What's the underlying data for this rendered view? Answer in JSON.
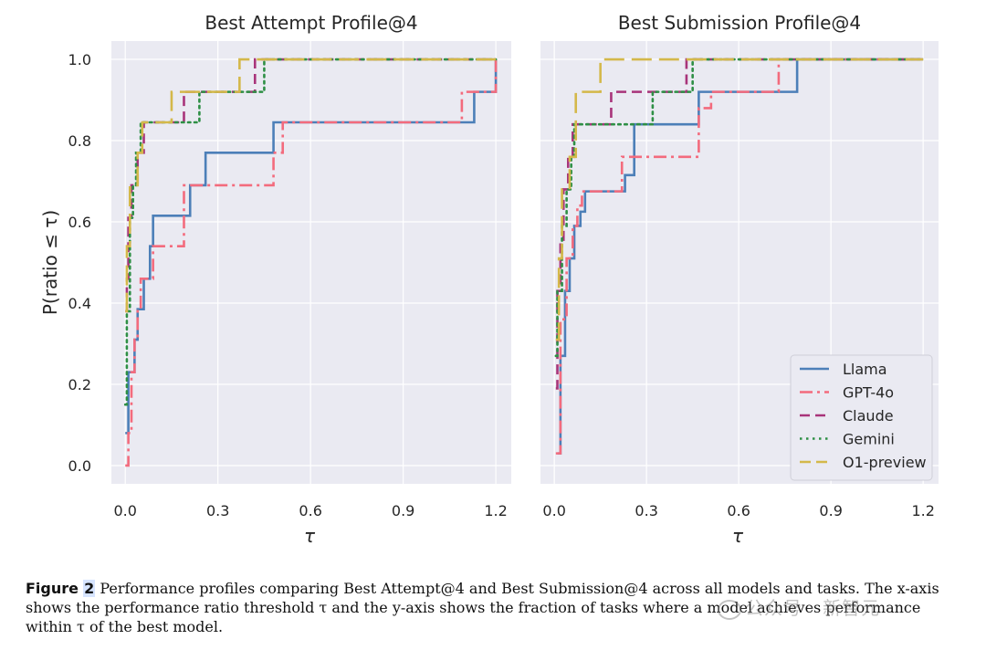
{
  "colors": {
    "plot_bg": "#eaeaf2",
    "grid": "#ffffff",
    "llama": "#4c7fb8",
    "gpt4o": "#f36b7d",
    "claude": "#a8347a",
    "gemini": "#2e8f45",
    "o1": "#d4b84a"
  },
  "chart_data": [
    {
      "type": "line",
      "step": "post",
      "title": "Best Attempt Profile@4",
      "xlabel": "τ",
      "ylabel": "P(ratio ≤ τ)",
      "xlim": [
        -0.045,
        1.25
      ],
      "ylim": [
        -0.045,
        1.045
      ],
      "xticks": [
        "0.0",
        "0.3",
        "0.6",
        "0.9",
        "1.2"
      ],
      "yticks": [
        "0.0",
        "0.2",
        "0.4",
        "0.6",
        "0.8",
        "1.0"
      ],
      "grid": true,
      "series": [
        {
          "name": "Llama",
          "style": "solid",
          "x": [
            0.0,
            0.01,
            0.03,
            0.04,
            0.06,
            0.08,
            0.09,
            0.21,
            0.26,
            0.48,
            1.13,
            1.2
          ],
          "y": [
            0.08,
            0.23,
            0.31,
            0.385,
            0.46,
            0.54,
            0.615,
            0.69,
            0.77,
            0.845,
            0.92,
            1.0
          ]
        },
        {
          "name": "GPT-4o",
          "style": "dashdot",
          "x": [
            0.0,
            0.01,
            0.02,
            0.03,
            0.04,
            0.05,
            0.09,
            0.19,
            0.48,
            0.51,
            1.09,
            1.2
          ],
          "y": [
            0.0,
            0.08,
            0.23,
            0.31,
            0.385,
            0.46,
            0.54,
            0.69,
            0.77,
            0.845,
            0.92,
            1.0
          ]
        },
        {
          "name": "Claude",
          "style": "dashed",
          "x": [
            0.0,
            0.005,
            0.01,
            0.02,
            0.04,
            0.06,
            0.19,
            0.42,
            1.2
          ],
          "y": [
            0.38,
            0.46,
            0.61,
            0.69,
            0.77,
            0.845,
            0.92,
            1.0,
            1.0
          ]
        },
        {
          "name": "Gemini",
          "style": "dotted",
          "x": [
            0.0,
            0.005,
            0.015,
            0.025,
            0.035,
            0.05,
            0.06,
            0.24,
            0.45,
            1.2
          ],
          "y": [
            0.15,
            0.38,
            0.61,
            0.69,
            0.77,
            0.845,
            0.845,
            0.92,
            1.0,
            1.0
          ]
        },
        {
          "name": "O1-preview",
          "style": "longdash",
          "x": [
            0.0,
            0.005,
            0.015,
            0.04,
            0.055,
            0.15,
            0.37,
            1.2
          ],
          "y": [
            0.38,
            0.54,
            0.69,
            0.77,
            0.845,
            0.92,
            1.0,
            1.0
          ]
        }
      ]
    },
    {
      "type": "line",
      "step": "post",
      "title": "Best Submission Profile@4",
      "xlabel": "τ",
      "ylabel": "",
      "xlim": [
        -0.045,
        1.25
      ],
      "ylim": [
        -0.045,
        1.045
      ],
      "xticks": [
        "0.0",
        "0.3",
        "0.6",
        "0.9",
        "1.2"
      ],
      "yticks": [
        "0.0",
        "0.2",
        "0.4",
        "0.6",
        "0.8",
        "1.0"
      ],
      "grid": true,
      "legend": {
        "position": "bottom-right",
        "labels": [
          "Llama",
          "GPT-4o",
          "Claude",
          "Gemini",
          "O1-preview"
        ]
      },
      "series": [
        {
          "name": "Llama",
          "style": "solid",
          "x": [
            0.01,
            0.02,
            0.035,
            0.05,
            0.065,
            0.085,
            0.1,
            0.23,
            0.26,
            0.47,
            0.79,
            1.2
          ],
          "y": [
            0.03,
            0.27,
            0.43,
            0.51,
            0.59,
            0.625,
            0.675,
            0.715,
            0.84,
            0.92,
            1.0,
            1.0
          ]
        },
        {
          "name": "GPT-4o",
          "style": "dashdot",
          "x": [
            0.005,
            0.02,
            0.04,
            0.06,
            0.075,
            0.09,
            0.22,
            0.47,
            0.51,
            0.73,
            1.2
          ],
          "y": [
            0.03,
            0.36,
            0.51,
            0.59,
            0.64,
            0.675,
            0.76,
            0.88,
            0.92,
            1.0,
            1.0
          ]
        },
        {
          "name": "Claude",
          "style": "dashed",
          "x": [
            0.005,
            0.01,
            0.02,
            0.03,
            0.045,
            0.06,
            0.185,
            0.43,
            1.2
          ],
          "y": [
            0.19,
            0.43,
            0.55,
            0.68,
            0.76,
            0.84,
            0.92,
            1.0,
            1.0
          ]
        },
        {
          "name": "Gemini",
          "style": "dotted",
          "x": [
            0.005,
            0.01,
            0.025,
            0.04,
            0.055,
            0.065,
            0.32,
            0.45,
            1.2
          ],
          "y": [
            0.27,
            0.43,
            0.59,
            0.68,
            0.76,
            0.84,
            0.92,
            1.0,
            1.0
          ]
        },
        {
          "name": "O1-preview",
          "style": "longdash",
          "x": [
            0.005,
            0.015,
            0.025,
            0.05,
            0.07,
            0.15,
            1.2
          ],
          "y": [
            0.31,
            0.51,
            0.68,
            0.76,
            0.92,
            1.0,
            1.0
          ]
        }
      ]
    }
  ],
  "caption": {
    "label": "Figure",
    "number": "2",
    "text": "Performance profiles comparing Best Attempt@4 and Best Submission@4 across all models and tasks. The x-axis shows the performance ratio threshold τ and the y-axis shows the fraction of tasks where a model achieves performance within τ of the best model."
  },
  "watermark": {
    "text": "公众号 · 新智元"
  }
}
